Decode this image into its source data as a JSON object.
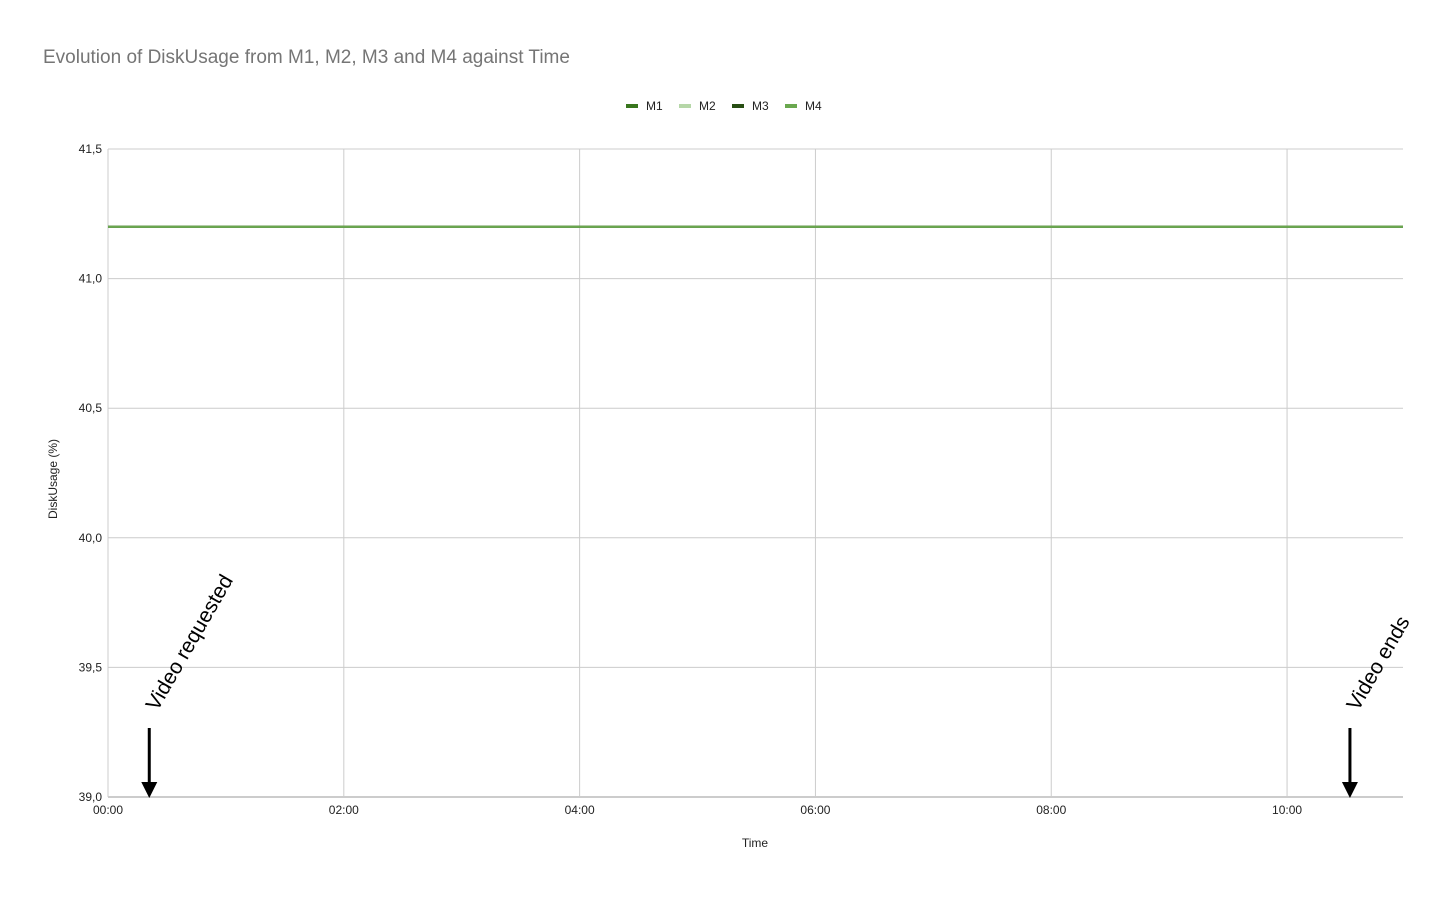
{
  "chart_data": {
    "type": "line",
    "title": "Evolution of DiskUsage from M1, M2, M3 and M4 against Time",
    "xlabel": "Time",
    "ylabel": "DiskUsage (%)",
    "x_ticks": [
      "00:00",
      "02:00",
      "04:00",
      "06:00",
      "08:00",
      "10:00"
    ],
    "x_tick_minutes": [
      0,
      120,
      240,
      360,
      480,
      600
    ],
    "xlim_minutes": [
      0,
      659
    ],
    "y_ticks": [
      "41,5",
      "41,0",
      "40,5",
      "40,0",
      "39,5",
      "39,0"
    ],
    "y_tick_values": [
      41.5,
      41.0,
      40.5,
      40.0,
      39.5,
      39.0
    ],
    "ylim": [
      39.0,
      41.5
    ],
    "grid": true,
    "legend_position": "top",
    "series": [
      {
        "name": "M1",
        "color": "#38761d",
        "x_minutes": [
          0,
          659
        ],
        "values": [
          41.2,
          41.2
        ]
      },
      {
        "name": "M2",
        "color": "#b6d7a8",
        "x_minutes": [
          0,
          659
        ],
        "values": [
          41.2,
          41.2
        ]
      },
      {
        "name": "M3",
        "color": "#274e13",
        "x_minutes": [
          0,
          659
        ],
        "values": [
          41.2,
          41.2
        ]
      },
      {
        "name": "M4",
        "color": "#6aa84f",
        "x_minutes": [
          0,
          659
        ],
        "values": [
          41.2,
          41.2
        ]
      }
    ],
    "annotations": [
      {
        "text": "Video requested",
        "x_minutes": 21
      },
      {
        "text": "Video ends",
        "x_minutes": 632
      }
    ]
  }
}
